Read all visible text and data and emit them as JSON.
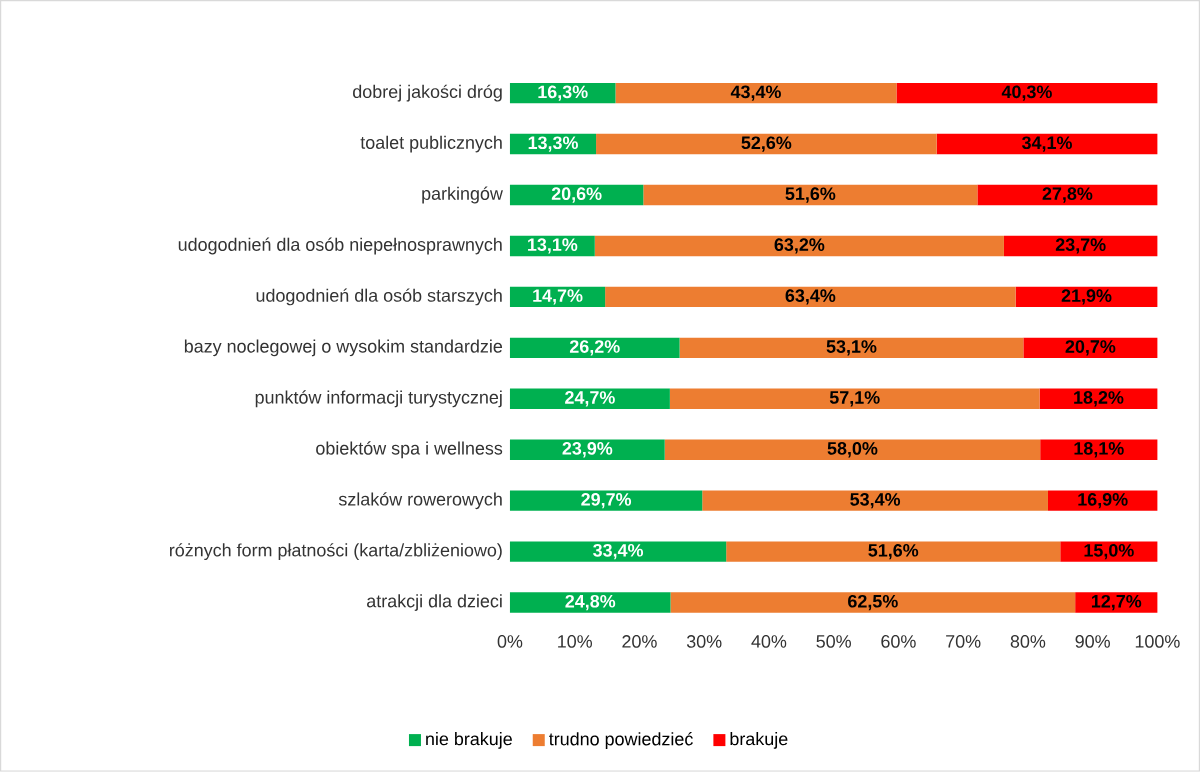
{
  "chart_data": {
    "type": "bar",
    "orientation": "horizontal",
    "stacked": true,
    "legend": "bottom",
    "categories": [
      "dobrej jakości dróg",
      "toalet publicznych",
      "parkingów",
      "udogodnień dla osób niepełnosprawnych",
      "udogodnień dla osób starszych",
      "bazy noclegowej o wysokim standardzie",
      "punktów informacji turystycznej",
      "obiektów spa i wellness",
      "szlaków rowerowych",
      "różnych form płatności (karta/zbliżeniowo)",
      "atrakcji dla dzieci"
    ],
    "xlim": [
      0,
      100
    ],
    "xticks": [
      {
        "value": 0,
        "label": "0%"
      },
      {
        "value": 10,
        "label": "10%"
      },
      {
        "value": 20,
        "label": "20%"
      },
      {
        "value": 30,
        "label": "30%"
      },
      {
        "value": 40,
        "label": "40%"
      },
      {
        "value": 50,
        "label": "50%"
      },
      {
        "value": 60,
        "label": "60%"
      },
      {
        "value": 70,
        "label": "70%"
      },
      {
        "value": 80,
        "label": "80%"
      },
      {
        "value": 90,
        "label": "90%"
      },
      {
        "value": 100,
        "label": "100%"
      }
    ],
    "series": [
      {
        "name": "nie brakuje",
        "color": "#00b050",
        "values": [
          16.3,
          13.3,
          20.6,
          13.1,
          14.7,
          26.2,
          24.7,
          23.9,
          29.7,
          33.4,
          24.8
        ],
        "value_labels": [
          "16,3%",
          "13,3%",
          "20,6%",
          "13,1%",
          "14,7%",
          "26,2%",
          "24,7%",
          "23,9%",
          "29,7%",
          "33,4%",
          "24,8%"
        ]
      },
      {
        "name": "trudno powiedzieć",
        "color": "#ed7d31",
        "values": [
          43.4,
          52.6,
          51.6,
          63.2,
          63.4,
          53.1,
          57.1,
          58.0,
          53.4,
          51.6,
          62.5
        ],
        "value_labels": [
          "43,4%",
          "52,6%",
          "51,6%",
          "63,2%",
          "63,4%",
          "53,1%",
          "57,1%",
          "58,0%",
          "53,4%",
          "51,6%",
          "62,5%"
        ]
      },
      {
        "name": "brakuje",
        "color": "#ff0000",
        "values": [
          40.3,
          34.1,
          27.8,
          23.7,
          21.9,
          20.7,
          18.2,
          18.1,
          16.9,
          15.0,
          12.7
        ],
        "value_labels": [
          "40,3%",
          "34,1%",
          "27,8%",
          "23,7%",
          "21,9%",
          "20,7%",
          "18,2%",
          "18,1%",
          "16,9%",
          "15,0%",
          "12,7%"
        ]
      }
    ]
  }
}
